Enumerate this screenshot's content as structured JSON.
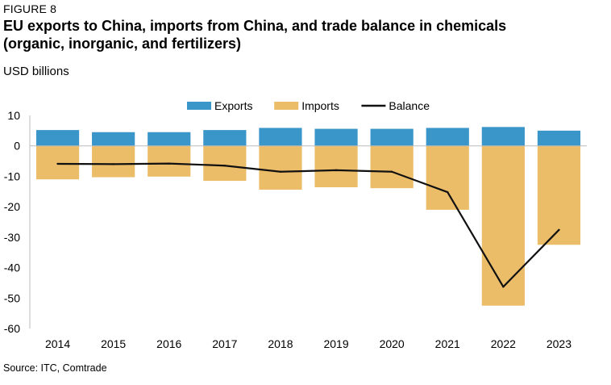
{
  "figure_label": "FIGURE 8",
  "title": "EU exports to China, imports from China, and trade balance in chemicals (organic, inorganic, and fertilizers)",
  "subtitle": "USD billions",
  "source": "Source: ITC, Comtrade",
  "colors": {
    "exports": "#3a96c9",
    "imports": "#ebbd69",
    "balance": "#111111"
  },
  "chart_data": {
    "type": "bar",
    "categories": [
      "2014",
      "2015",
      "2016",
      "2017",
      "2018",
      "2019",
      "2020",
      "2021",
      "2022",
      "2023"
    ],
    "series": [
      {
        "name": "Exports",
        "type": "bar",
        "values": [
          5.2,
          4.5,
          4.5,
          5.2,
          5.9,
          5.6,
          5.6,
          5.9,
          6.2,
          5.0
        ]
      },
      {
        "name": "Imports",
        "type": "bar",
        "values": [
          -11.0,
          -10.3,
          -10.1,
          -11.5,
          -14.4,
          -13.6,
          -13.9,
          -21.0,
          -52.5,
          -32.5
        ]
      },
      {
        "name": "Balance",
        "type": "line",
        "values": [
          -5.9,
          -6.0,
          -5.8,
          -6.5,
          -8.5,
          -8.0,
          -8.5,
          -15.2,
          -46.3,
          -27.6
        ]
      }
    ],
    "ylim": [
      -60,
      10
    ],
    "yticks": [
      "10",
      "0",
      "-10",
      "-20",
      "-30",
      "-40",
      "-50",
      "-60"
    ],
    "legend": "top-center",
    "grid": false
  }
}
